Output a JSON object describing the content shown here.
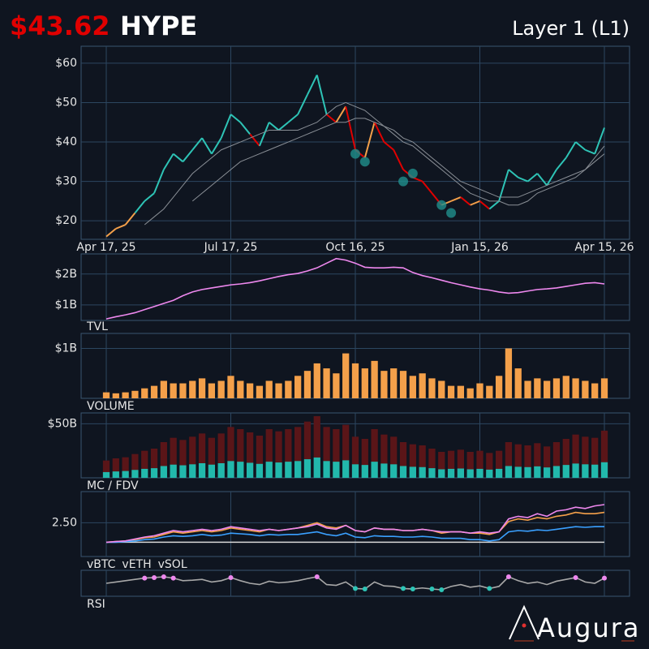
{
  "header": {
    "price": "$43.62",
    "ticker": "HYPE",
    "category": "Layer 1 (L1)"
  },
  "logo": "Augura",
  "chart_data": [
    {
      "type": "line",
      "x": [
        "Apr 17, 25",
        "Apr 24, 25",
        "May 1, 25",
        "May 8, 25",
        "May 15, 25",
        "May 22, 25",
        "May 29, 25",
        "Jun 5, 25",
        "Jun 12, 25",
        "Jun 19, 25",
        "Jun 26, 25",
        "Jul 3, 25",
        "Jul 10, 25",
        "Jul 17, 25",
        "Jul 24, 25",
        "Jul 31, 25",
        "Aug 7, 25",
        "Aug 14, 25",
        "Aug 21, 25",
        "Aug 28, 25",
        "Sep 4, 25",
        "Sep 11, 25",
        "Sep 18, 25",
        "Sep 25, 25",
        "Oct 2, 25",
        "Oct 9, 25",
        "Oct 16, 25",
        "Oct 23, 25",
        "Oct 30, 25",
        "Nov 6, 25",
        "Nov 13, 25",
        "Nov 20, 25",
        "Nov 27, 25",
        "Dec 4, 25",
        "Dec 11, 25",
        "Dec 18, 25",
        "Dec 25, 25",
        "Jan 1, 26",
        "Jan 8, 26",
        "Jan 15, 26",
        "Jan 22, 26",
        "Jan 29, 26",
        "Feb 5, 26",
        "Feb 12, 26",
        "Feb 19, 26",
        "Feb 26, 26",
        "Mar 5, 26",
        "Mar 12, 26",
        "Mar 19, 26",
        "Mar 26, 26",
        "Apr 2, 26",
        "Apr 9, 26",
        "Apr 15, 26"
      ],
      "xticks": [
        "Apr 17, 25",
        "Jul 17, 25",
        "Oct 16, 25",
        "Jan 15, 26",
        "Apr 15, 26"
      ],
      "ylim": [
        15.3,
        64.3
      ],
      "yticks": [
        {
          "value": 20,
          "label": "$20"
        },
        {
          "value": 30,
          "label": "$30"
        },
        {
          "value": 40,
          "label": "$40"
        },
        {
          "value": 50,
          "label": "$50"
        },
        {
          "value": 60,
          "label": "$60"
        }
      ],
      "grid": true,
      "series": [
        {
          "values": [
            16,
            18,
            19,
            22,
            25,
            27,
            33,
            37,
            35,
            38,
            41,
            37,
            41,
            47,
            45,
            42,
            39,
            45,
            43,
            45,
            47,
            52,
            57,
            47,
            45,
            49,
            38,
            36,
            45,
            40,
            38,
            33,
            31,
            30,
            27,
            24,
            25,
            26,
            24,
            25,
            23,
            25,
            33,
            31,
            30,
            32,
            29,
            33,
            36,
            40,
            38,
            37,
            43.62
          ],
          "colors": {
            "up": "#2ec4b6",
            "rise": "#f4a04a",
            "down": "#e00000"
          }
        },
        {
          "values": [
            null,
            null,
            null,
            null,
            19,
            21,
            23,
            26,
            29,
            32,
            34,
            36,
            38,
            39,
            40,
            41,
            42,
            43,
            43,
            43,
            43,
            44,
            45,
            47,
            49,
            50,
            49,
            48,
            46,
            44,
            42,
            40,
            39,
            37,
            35,
            33,
            31,
            29,
            27,
            26,
            25,
            25,
            24,
            24,
            25,
            27,
            28,
            29,
            30,
            31,
            33,
            36,
            39
          ],
          "color": "#8a8f96"
        },
        {
          "values": [
            null,
            null,
            null,
            null,
            null,
            null,
            null,
            null,
            null,
            25,
            27,
            29,
            31,
            33,
            35,
            36,
            37,
            38,
            39,
            40,
            41,
            42,
            43,
            44,
            45,
            45,
            46,
            46,
            45,
            44,
            43,
            41,
            40,
            38,
            36,
            34,
            32,
            30,
            29,
            28,
            27,
            26,
            26,
            26,
            27,
            28,
            29,
            30,
            31,
            32,
            33,
            35,
            37
          ],
          "color": "#8a8f96"
        }
      ],
      "signals": {
        "x": [
          "Oct 16, 25",
          "Oct 23, 25",
          "Nov 20, 25",
          "Nov 27, 25",
          "Dec 18, 25",
          "Dec 25, 25"
        ],
        "values": [
          37,
          35,
          30,
          32,
          24,
          22
        ],
        "color": "#1f8f8c"
      }
    },
    {
      "type": "line",
      "label": "TVL",
      "label_color": "#ee88ee",
      "ylim": [
        0.5,
        2.65
      ],
      "yticks": [
        {
          "value": 1,
          "label": "$1B"
        },
        {
          "value": 2,
          "label": "$2B"
        }
      ],
      "grid": true,
      "series": [
        {
          "values": [
            0.55,
            0.62,
            0.68,
            0.75,
            0.85,
            0.95,
            1.05,
            1.15,
            1.3,
            1.42,
            1.5,
            1.55,
            1.6,
            1.65,
            1.68,
            1.72,
            1.78,
            1.85,
            1.92,
            1.98,
            2.02,
            2.1,
            2.2,
            2.35,
            2.5,
            2.45,
            2.35,
            2.22,
            2.2,
            2.2,
            2.22,
            2.2,
            2.05,
            1.95,
            1.88,
            1.8,
            1.72,
            1.65,
            1.58,
            1.52,
            1.48,
            1.42,
            1.38,
            1.4,
            1.45,
            1.5,
            1.52,
            1.55,
            1.6,
            1.65,
            1.7,
            1.72,
            1.68
          ],
          "color": "#ee88ee"
        }
      ]
    },
    {
      "type": "bar",
      "label": "VOLUME",
      "label_color": "#f4a04a",
      "ylim": [
        0,
        1.3
      ],
      "yticks": [
        {
          "value": 1,
          "label": "$1B"
        }
      ],
      "grid": true,
      "series": [
        {
          "values": [
            0.12,
            0.1,
            0.12,
            0.15,
            0.2,
            0.25,
            0.35,
            0.3,
            0.3,
            0.35,
            0.4,
            0.3,
            0.35,
            0.45,
            0.35,
            0.3,
            0.25,
            0.35,
            0.3,
            0.35,
            0.45,
            0.55,
            0.7,
            0.6,
            0.5,
            0.9,
            0.7,
            0.6,
            0.75,
            0.55,
            0.6,
            0.55,
            0.45,
            0.5,
            0.4,
            0.35,
            0.25,
            0.25,
            0.2,
            0.3,
            0.25,
            0.45,
            1.0,
            0.6,
            0.35,
            0.4,
            0.35,
            0.4,
            0.45,
            0.4,
            0.35,
            0.3,
            0.4
          ],
          "color": "#f4a04a"
        }
      ]
    },
    {
      "type": "bar",
      "label": "MC / FDV",
      "label_color": "#2ec4b6",
      "ylim": [
        0,
        60
      ],
      "yticks": [
        {
          "value": 50,
          "label": "$50B"
        }
      ],
      "grid": true,
      "series": [
        {
          "values": [
            16,
            18,
            19,
            22,
            25,
            27,
            33,
            37,
            35,
            38,
            41,
            37,
            41,
            47,
            45,
            42,
            39,
            45,
            43,
            45,
            47,
            52,
            57,
            47,
            45,
            49,
            38,
            36,
            45,
            40,
            38,
            33,
            31,
            30,
            27,
            24,
            25,
            26,
            24,
            25,
            23,
            25,
            33,
            31,
            30,
            32,
            29,
            33,
            36,
            40,
            38,
            37,
            43.6
          ],
          "color": "#5a1518"
        },
        {
          "values": [
            5.3,
            5.9,
            6.3,
            7.3,
            8.3,
            8.9,
            10.9,
            12.2,
            11.6,
            12.5,
            13.5,
            12.2,
            13.5,
            15.5,
            14.9,
            13.9,
            12.9,
            14.9,
            14.2,
            14.9,
            15.5,
            17.2,
            18.8,
            15.5,
            14.9,
            16.2,
            12.5,
            11.9,
            14.9,
            13.2,
            12.5,
            10.9,
            10.2,
            9.9,
            8.9,
            7.9,
            8.3,
            8.6,
            7.9,
            8.3,
            7.6,
            8.3,
            10.9,
            10.2,
            9.9,
            10.6,
            9.6,
            10.9,
            11.9,
            13.2,
            12.5,
            12.2,
            14.4
          ],
          "color": "#22b8ac"
        }
      ]
    },
    {
      "type": "line",
      "ylim": [
        -0.1,
        4.9
      ],
      "yticks": [
        {
          "value": 2.5,
          "label": "2.50"
        }
      ],
      "grid": true,
      "baseline": {
        "value": 1,
        "color": "#d8d8d8"
      },
      "series": [
        {
          "name": "vBTC",
          "color": "#f4a04a",
          "values": [
            1,
            1.05,
            1.1,
            1.2,
            1.35,
            1.4,
            1.6,
            1.8,
            1.7,
            1.8,
            1.9,
            1.8,
            1.9,
            2.1,
            2.0,
            1.9,
            1.8,
            2.0,
            1.9,
            2.0,
            2.1,
            2.3,
            2.5,
            2.2,
            2.1,
            2.3,
            1.9,
            1.8,
            2.1,
            2.0,
            2.0,
            1.9,
            1.9,
            2.0,
            1.9,
            1.7,
            1.8,
            1.8,
            1.7,
            1.7,
            1.6,
            1.8,
            2.6,
            2.8,
            2.7,
            2.9,
            2.8,
            3.0,
            3.1,
            3.3,
            3.2,
            3.2,
            3.3
          ]
        },
        {
          "name": "vETH",
          "color": "#3aa0ff",
          "values": [
            1,
            1.0,
            1.05,
            1.1,
            1.2,
            1.25,
            1.4,
            1.5,
            1.45,
            1.5,
            1.6,
            1.5,
            1.55,
            1.7,
            1.65,
            1.6,
            1.5,
            1.6,
            1.55,
            1.6,
            1.6,
            1.7,
            1.8,
            1.6,
            1.5,
            1.7,
            1.4,
            1.35,
            1.5,
            1.45,
            1.45,
            1.4,
            1.4,
            1.45,
            1.4,
            1.3,
            1.3,
            1.3,
            1.2,
            1.2,
            1.1,
            1.2,
            1.8,
            1.9,
            1.85,
            1.95,
            1.9,
            2.0,
            2.1,
            2.2,
            2.15,
            2.2,
            2.2
          ]
        },
        {
          "name": "vSOL",
          "color": "#ee88ee",
          "values": [
            1,
            1.05,
            1.1,
            1.25,
            1.4,
            1.5,
            1.7,
            1.9,
            1.8,
            1.9,
            2.0,
            1.9,
            2.0,
            2.2,
            2.1,
            2.0,
            1.9,
            2.0,
            1.9,
            2.0,
            2.1,
            2.2,
            2.4,
            2.1,
            2.0,
            2.3,
            1.9,
            1.8,
            2.1,
            2.0,
            2.0,
            1.9,
            1.9,
            2.0,
            1.9,
            1.8,
            1.8,
            1.8,
            1.7,
            1.8,
            1.7,
            1.8,
            2.8,
            3.0,
            2.9,
            3.2,
            3.0,
            3.4,
            3.5,
            3.7,
            3.6,
            3.8,
            3.9
          ]
        }
      ]
    },
    {
      "type": "line",
      "label": "RSI",
      "label_color": "#ffffff",
      "ylim": [
        0,
        100
      ],
      "overbought": {
        "value": 70,
        "color": "#ee88ee"
      },
      "oversold": {
        "value": 30,
        "color": "#2ec4b6"
      },
      "series": [
        {
          "values": [
            50,
            55,
            60,
            65,
            70,
            72,
            75,
            70,
            60,
            62,
            65,
            55,
            60,
            72,
            60,
            50,
            45,
            58,
            52,
            55,
            60,
            68,
            75,
            45,
            42,
            55,
            30,
            28,
            55,
            40,
            38,
            30,
            28,
            32,
            28,
            25,
            38,
            45,
            35,
            40,
            30,
            38,
            75,
            60,
            50,
            55,
            45,
            58,
            65,
            72,
            55,
            50,
            70
          ],
          "color": "#a8a8a8"
        }
      ]
    }
  ]
}
